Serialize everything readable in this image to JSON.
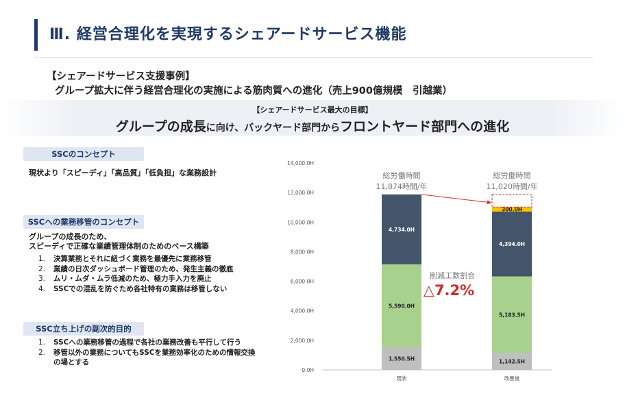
{
  "header": {
    "title": "Ⅲ. 経営合理化を実現するシェアードサービス機能"
  },
  "case": {
    "heading": "【シェアードサービス支援事例】",
    "sub": "グループ拡大に伴う経営合理化の実施による筋肉質への進化（売上900億規模　引越業）"
  },
  "goal": {
    "label": "【シェアードサービス最大の目標】",
    "part1": "グループの成長",
    "part2": "に向け、バックヤード部門から",
    "part3": "フロントヤード部門への進化"
  },
  "concept": {
    "head": "SSCのコンセプト",
    "text": "現状より「スピーディ」「高品質」「低負担」な業務設計"
  },
  "migration": {
    "head": "SSCへの業務移管のコンセプト",
    "line1": "グループの成長のため、",
    "line2": "スピーディで正確な業績管理体制のためのベース構築",
    "items": [
      {
        "num": "1.",
        "text": "決算業務とそれに紐づく業務を最優先に業務移管"
      },
      {
        "num": "2.",
        "text": "業績の日次ダッシュボード管理のため、発生主義の徹底"
      },
      {
        "num": "3.",
        "text": "ムリ・ムダ・ムラ低減のため、極力手入力を廃止"
      },
      {
        "num": "4.",
        "text": "SSCでの混乱を防ぐため各社特有の業務は移管しない"
      }
    ]
  },
  "secondary": {
    "head": "SSC立ち上げの副次的目的",
    "items": [
      {
        "num": "1.",
        "text": "SSCへの業務移管の過程で各社の業務改善も平行して行う"
      },
      {
        "num": "2.",
        "text": "移管以外の業務についてもSSCを業務効率化のための情報交換"
      },
      {
        "num": "",
        "text": "の場とする"
      }
    ]
  },
  "chart_data": {
    "type": "bar",
    "stacked": true,
    "categories": [
      "現状",
      "改善後"
    ],
    "ylim": [
      0,
      14000
    ],
    "yticks": [
      "0.0H",
      "2,000.0H",
      "4,000.0H",
      "6,000.0H",
      "8,000.0H",
      "10,000.0H",
      "12,000.0H",
      "14,000.0H"
    ],
    "ytick_values": [
      0,
      2000,
      4000,
      6000,
      8000,
      10000,
      12000,
      14000
    ],
    "series": [
      {
        "color": "#bfbfbf",
        "values": [
          1550.5,
          1142.5
        ],
        "labels": [
          "1,550.5H",
          "1,142.5H"
        ]
      },
      {
        "color": "#a9d18e",
        "values": [
          5590.0,
          5183.5
        ],
        "labels": [
          "5,590.0H",
          "5,183.5H"
        ]
      },
      {
        "color": "#44546a",
        "values": [
          4734.0,
          4394.0
        ],
        "labels": [
          "4,734.0H",
          "4,394.0H"
        ]
      },
      {
        "color": "#ffc000",
        "values": [
          0,
          300.0
        ],
        "labels": [
          "",
          "300.0H"
        ]
      }
    ],
    "totals": [
      {
        "label": "総労働時間",
        "value": "11,874時間/年"
      },
      {
        "label": "総労働時間",
        "value": "11,020時間/年"
      }
    ],
    "annotation": {
      "label": "削減工数割合",
      "value": "△7.2%"
    },
    "grid": false
  }
}
